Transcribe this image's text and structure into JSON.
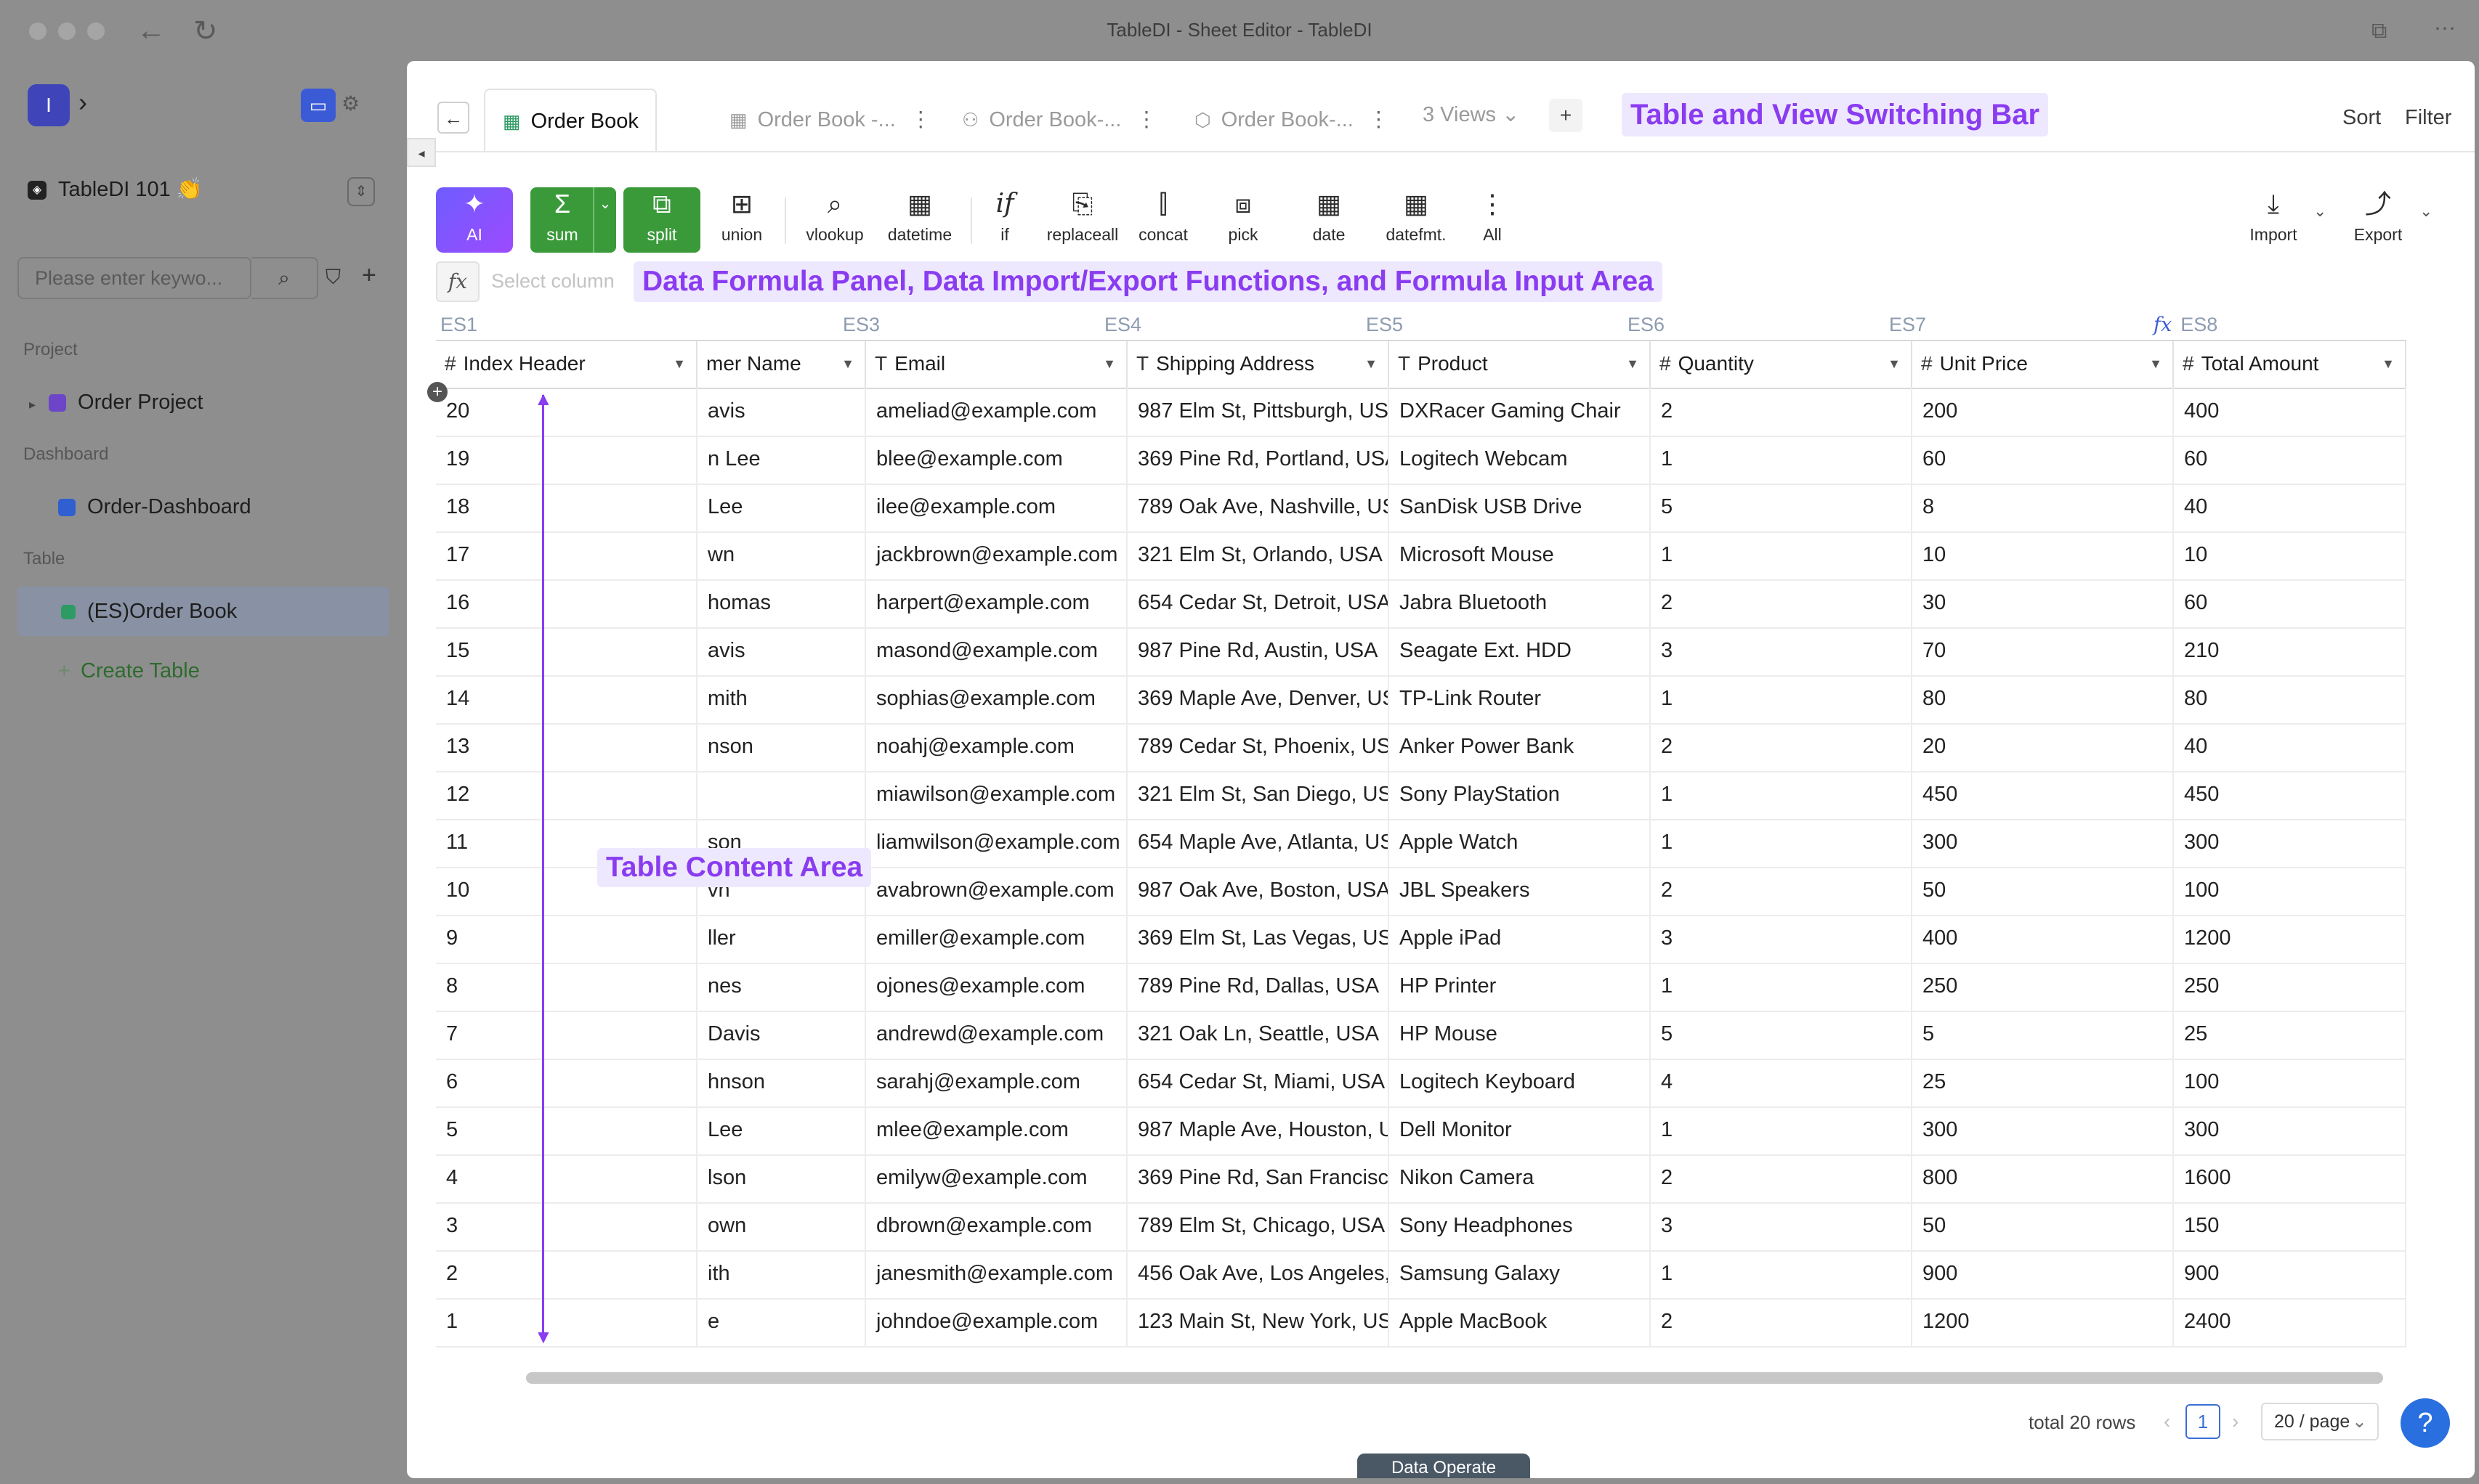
{
  "window": {
    "title": "TableDI - Sheet Editor - TableDI"
  },
  "sidebar": {
    "logo_letter": "I",
    "project_name": "TableDI 101 👏",
    "search_placeholder": "Please enter keywo...",
    "sections": {
      "project": "Project",
      "dashboard": "Dashboard",
      "table": "Table"
    },
    "project_item": "Order Project",
    "dashboard_item": "Order-Dashboard",
    "table_item": "(ES)Order Book",
    "create_table": "Create Table"
  },
  "tabs": [
    {
      "label": "Order Book",
      "icon": "table-icon"
    },
    {
      "label": "Order Book -...",
      "icon": "grid-icon"
    },
    {
      "label": "Order Book-...",
      "icon": "org-chart-icon"
    },
    {
      "label": "Order Book-...",
      "icon": "cube-icon"
    }
  ],
  "views_label": "3 Views",
  "sort_label": "Sort",
  "filter_label": "Filter",
  "callouts": {
    "tabbar": "Table and View Switching Bar",
    "toolbar": "Data Formula Panel, Data Import/Export Functions, and Formula Input Area",
    "table": "Table Content Area"
  },
  "toolbar": {
    "tools": [
      "AI",
      "sum",
      "split",
      "union",
      "vlookup",
      "datetime",
      "if",
      "replaceall",
      "concat",
      "pick",
      "date",
      "datefmt.",
      "All"
    ],
    "import_label": "Import",
    "export_label": "Export"
  },
  "formula": {
    "placeholder": "Select column"
  },
  "columns": [
    {
      "es": "ES1",
      "name": "Index Header",
      "type": "#"
    },
    {
      "es": "",
      "name": "mer Name",
      "type": ""
    },
    {
      "es": "ES3",
      "name": "Email",
      "type": "T"
    },
    {
      "es": "ES4",
      "name": "Shipping Address",
      "type": "T"
    },
    {
      "es": "ES5",
      "name": "Product",
      "type": "T"
    },
    {
      "es": "ES6",
      "name": "Quantity",
      "type": "#"
    },
    {
      "es": "ES7",
      "name": "Unit Price",
      "type": "#"
    },
    {
      "es": "ES8",
      "name": "Total Amount",
      "type": "#"
    }
  ],
  "rows": [
    [
      "20",
      "avis",
      "ameliad@example.com",
      "987 Elm St, Pittsburgh, US",
      "DXRacer Gaming Chair",
      "2",
      "200",
      "400"
    ],
    [
      "19",
      "n Lee",
      "blee@example.com",
      "369 Pine Rd, Portland, USA",
      "Logitech Webcam",
      "1",
      "60",
      "60"
    ],
    [
      "18",
      "Lee",
      "ilee@example.com",
      "789 Oak Ave, Nashville, US",
      "SanDisk USB Drive",
      "5",
      "8",
      "40"
    ],
    [
      "17",
      "wn",
      "jackbrown@example.com",
      "321 Elm St, Orlando, USA",
      "Microsoft Mouse",
      "1",
      "10",
      "10"
    ],
    [
      "16",
      "homas",
      "harpert@example.com",
      "654 Cedar St, Detroit, USA",
      "Jabra Bluetooth",
      "2",
      "30",
      "60"
    ],
    [
      "15",
      "avis",
      "masond@example.com",
      "987 Pine Rd, Austin, USA",
      "Seagate Ext. HDD",
      "3",
      "70",
      "210"
    ],
    [
      "14",
      "mith",
      "sophias@example.com",
      "369 Maple Ave, Denver, US",
      "TP-Link Router",
      "1",
      "80",
      "80"
    ],
    [
      "13",
      "nson",
      "noahj@example.com",
      "789 Cedar St, Phoenix, US",
      "Anker Power Bank",
      "2",
      "20",
      "40"
    ],
    [
      "12",
      "",
      "miawilson@example.com",
      "321 Elm St, San Diego, US",
      "Sony PlayStation",
      "1",
      "450",
      "450"
    ],
    [
      "11",
      "son",
      "liamwilson@example.com",
      "654 Maple Ave, Atlanta, US",
      "Apple Watch",
      "1",
      "300",
      "300"
    ],
    [
      "10",
      "vn",
      "avabrown@example.com",
      "987 Oak Ave, Boston, USA",
      "JBL Speakers",
      "2",
      "50",
      "100"
    ],
    [
      "9",
      "ller",
      "emiller@example.com",
      "369 Elm St, Las Vegas, US",
      "Apple iPad",
      "3",
      "400",
      "1200"
    ],
    [
      "8",
      "nes",
      "ojones@example.com",
      "789 Pine Rd, Dallas, USA",
      "HP Printer",
      "1",
      "250",
      "250"
    ],
    [
      "7",
      "Davis",
      "andrewd@example.com",
      "321 Oak Ln, Seattle, USA",
      "HP Mouse",
      "5",
      "5",
      "25"
    ],
    [
      "6",
      "hnson",
      "sarahj@example.com",
      "654 Cedar St, Miami, USA",
      "Logitech Keyboard",
      "4",
      "25",
      "100"
    ],
    [
      "5",
      "Lee",
      "mlee@example.com",
      "987 Maple Ave, Houston, U",
      "Dell Monitor",
      "1",
      "300",
      "300"
    ],
    [
      "4",
      "lson",
      "emilyw@example.com",
      "369 Pine Rd, San Francisc",
      "Nikon Camera",
      "2",
      "800",
      "1600"
    ],
    [
      "3",
      "own",
      "dbrown@example.com",
      "789 Elm St, Chicago, USA",
      "Sony Headphones",
      "3",
      "50",
      "150"
    ],
    [
      "2",
      "ith",
      "janesmith@example.com",
      "456 Oak Ave, Los Angeles,",
      "Samsung Galaxy",
      "1",
      "900",
      "900"
    ],
    [
      "1",
      "e",
      "johndoe@example.com",
      "123 Main St, New York, US",
      "Apple MacBook",
      "2",
      "1200",
      "2400"
    ]
  ],
  "footer": {
    "total": "total 20 rows",
    "page": "1",
    "page_size": "20 / page",
    "help": "?"
  },
  "data_operate": "Data Operate"
}
